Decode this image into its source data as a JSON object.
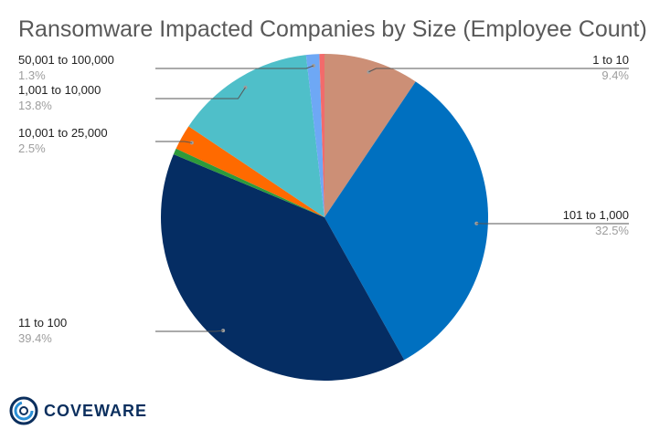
{
  "chart_data": {
    "type": "pie",
    "title": "Ransomware Impacted Companies by Size (Employee Count)",
    "slices": [
      {
        "label": "1 to 10",
        "value": 9.4,
        "pct": "9.4%",
        "color": "#cc8f76"
      },
      {
        "label": "101 to 1,000",
        "value": 32.5,
        "pct": "32.5%",
        "color": "#0070c0"
      },
      {
        "label": "11 to 100",
        "value": 39.4,
        "pct": "39.4%",
        "color": "#052d63"
      },
      {
        "label": "",
        "value": 0.6,
        "pct": "",
        "color": "#2e9a3b"
      },
      {
        "label": "10,001 to 25,000",
        "value": 2.5,
        "pct": "2.5%",
        "color": "#ff6a00"
      },
      {
        "label": "1,001 to 10,000",
        "value": 13.8,
        "pct": "13.8%",
        "color": "#4fbfc9"
      },
      {
        "label": "50,001 to 100,000",
        "value": 1.3,
        "pct": "1.3%",
        "color": "#6ea8f5"
      },
      {
        "label": "",
        "value": 0.5,
        "pct": "",
        "color": "#f26b6b"
      }
    ]
  },
  "logo": {
    "text": "COVEWARE"
  }
}
